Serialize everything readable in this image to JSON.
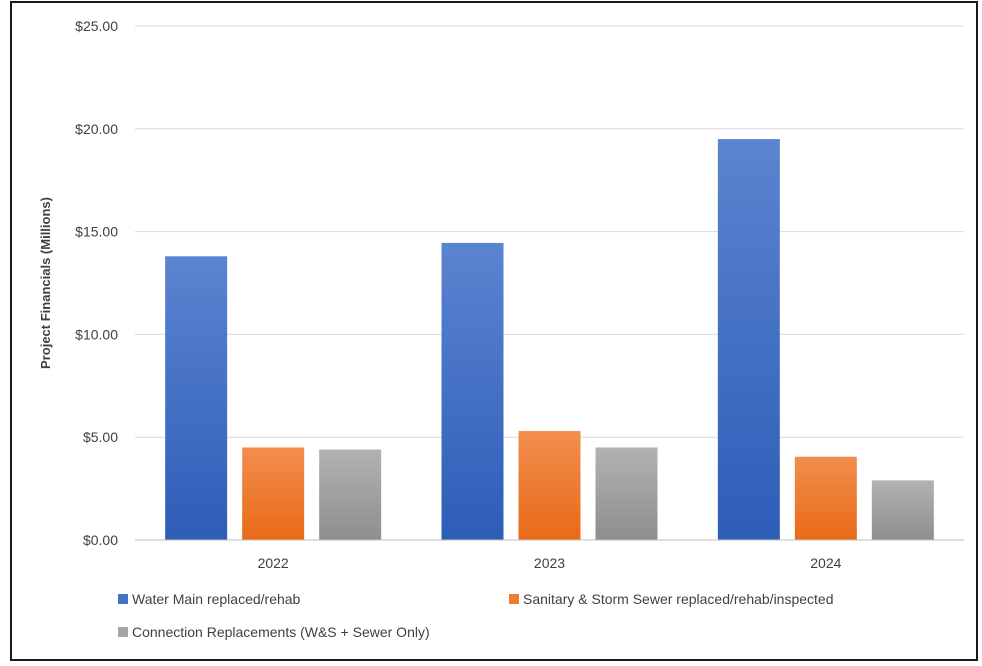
{
  "chart_data": {
    "type": "bar",
    "title": "",
    "xlabel": "",
    "ylabel": "Project Financials (Millions)",
    "categories": [
      "2022",
      "2023",
      "2024"
    ],
    "ylim": [
      0,
      25
    ],
    "yticks": [
      "$0.00",
      "$5.00",
      "$10.00",
      "$15.00",
      "$20.00",
      "$25.00"
    ],
    "grid": true,
    "legend": "bottom",
    "series": [
      {
        "name": "Water Main replaced/rehab",
        "color": "#4472C4",
        "values": [
          13.8,
          14.45,
          19.5
        ]
      },
      {
        "name": "Sanitary & Storm Sewer replaced/rehab/inspected",
        "color": "#ED7D31",
        "values": [
          4.5,
          5.3,
          4.05
        ]
      },
      {
        "name": "Connection Replacements (W&S + Sewer Only)",
        "color": "#A5A5A5",
        "values": [
          4.4,
          4.5,
          2.9
        ]
      }
    ]
  }
}
